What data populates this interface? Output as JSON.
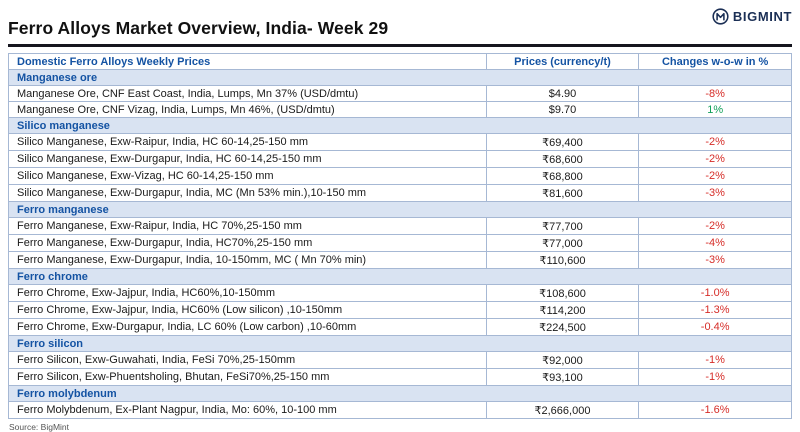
{
  "header": {
    "title": "Ferro Alloys Market Overview, India- Week 29",
    "brand": "BIGMINT"
  },
  "table": {
    "columns": [
      "Domestic Ferro Alloys Weekly Prices",
      "Prices (currency/t)",
      "Changes w-o-w in %"
    ],
    "sections": [
      {
        "name": "Manganese ore",
        "rows": [
          {
            "desc": "Manganese Ore, CNF East Coast, India, Lumps, Mn 37% (USD/dmtu)",
            "price": "$4.90",
            "change": "-8%"
          },
          {
            "desc": "Manganese Ore, CNF Vizag, India, Lumps, Mn 46%, (USD/dmtu)",
            "price": "$9.70",
            "change": "1%"
          }
        ]
      },
      {
        "name": "Silico manganese",
        "rows": [
          {
            "desc": "Silico Manganese, Exw-Raipur, India, HC 60-14,25-150 mm",
            "price": "₹69,400",
            "change": "-2%"
          },
          {
            "desc": "Silico Manganese, Exw-Durgapur, India, HC 60-14,25-150 mm",
            "price": "₹68,600",
            "change": "-2%"
          },
          {
            "desc": "Silico Manganese, Exw-Vizag, HC 60-14,25-150 mm",
            "price": "₹68,800",
            "change": "-2%"
          },
          {
            "desc": "Silico Manganese, Exw-Durgapur, India, MC (Mn 53% min.),10-150 mm",
            "price": "₹81,600",
            "change": "-3%"
          }
        ]
      },
      {
        "name": "Ferro manganese",
        "rows": [
          {
            "desc": "Ferro Manganese, Exw-Raipur, India, HC 70%,25-150 mm",
            "price": "₹77,700",
            "change": "-2%"
          },
          {
            "desc": "Ferro Manganese, Exw-Durgapur, India, HC70%,25-150 mm",
            "price": "₹77,000",
            "change": "-4%"
          },
          {
            "desc": "Ferro Manganese, Exw-Durgapur, India, 10-150mm, MC ( Mn 70% min)",
            "price": "₹110,600",
            "change": "-3%"
          }
        ]
      },
      {
        "name": "Ferro chrome",
        "rows": [
          {
            "desc": "Ferro Chrome, Exw-Jajpur, India, HC60%,10-150mm",
            "price": "₹108,600",
            "change": "-1.0%"
          },
          {
            "desc": "Ferro Chrome, Exw-Jajpur, India, HC60% (Low silicon) ,10-150mm",
            "price": "₹114,200",
            "change": "-1.3%"
          },
          {
            "desc": "Ferro Chrome, Exw-Durgapur, India, LC 60% (Low carbon) ,10-60mm",
            "price": "₹224,500",
            "change": "-0.4%"
          }
        ]
      },
      {
        "name": "Ferro silicon",
        "rows": [
          {
            "desc": "Ferro Silicon, Exw-Guwahati, India, FeSi 70%,25-150mm",
            "price": "₹92,000",
            "change": "-1%"
          },
          {
            "desc": "Ferro Silicon, Exw-Phuentsholing, Bhutan, FeSi70%,25-150 mm",
            "price": "₹93,100",
            "change": "-1%"
          }
        ]
      },
      {
        "name": "Ferro molybdenum",
        "rows": [
          {
            "desc": "Ferro Molybdenum, Ex-Plant Nagpur, India, Mo: 60%, 10-100 mm",
            "price": "₹2,666,000",
            "change": "-1.6%"
          }
        ]
      }
    ]
  },
  "footer": {
    "source": "Source: BigMint"
  },
  "colors": {
    "accent": "#1453a3",
    "section_bg": "#d9e3f2",
    "negative": "#d62d28",
    "positive": "#12a05a",
    "border": "#a6b8d4",
    "brand": "#1b2f55"
  }
}
